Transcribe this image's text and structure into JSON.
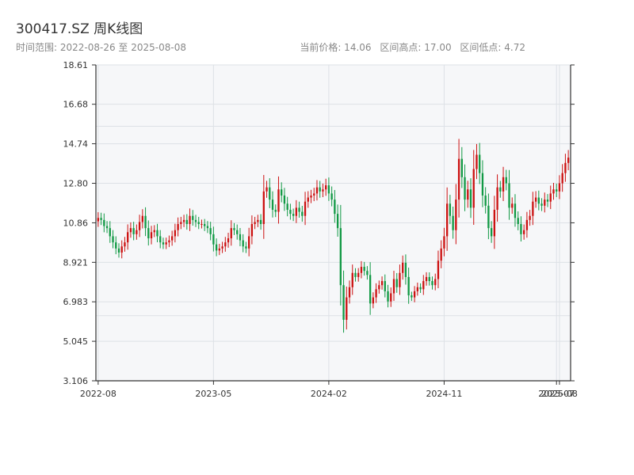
{
  "header": {
    "title": "300417.SZ 周K线图",
    "subtitle": "时间范围: 2022-08-26 至 2025-08-08",
    "stats": {
      "current": "当前价格: 14.06",
      "high": "区间高点: 17.00",
      "low": "区间低点: 4.72"
    }
  },
  "colors": {
    "up": "#cc1111",
    "down": "#119944",
    "plot_bg": "#f6f7f9",
    "grid": "#dde1e6",
    "axis": "#333333"
  },
  "chart_data": {
    "type": "candlestick",
    "title": "300417.SZ 周K线图",
    "ylim": [
      3.106,
      18.61
    ],
    "y_ticks": [
      3.106,
      5.045,
      6.983,
      8.921,
      10.86,
      12.8,
      14.74,
      16.68,
      18.61
    ],
    "y_tick_labels": [
      "3.106",
      "5.045",
      "6.983",
      "8.921",
      "10.86",
      "12.80",
      "14.74",
      "16.68",
      "18.61"
    ],
    "x_ticks": [
      {
        "label": "2022-08",
        "index": 0
      },
      {
        "label": "2023-05",
        "index": 39
      },
      {
        "label": "2024-02",
        "index": 78
      },
      {
        "label": "2024-11",
        "index": 117
      },
      {
        "label": "2025-07",
        "index": 155
      },
      {
        "label": "2025-08",
        "index": 156
      }
    ],
    "minor_grid_y": [
      6.3,
      15.6
    ],
    "closes": [
      11.1,
      11.0,
      10.7,
      10.6,
      10.2,
      9.9,
      9.6,
      9.4,
      9.7,
      9.9,
      10.4,
      10.6,
      10.3,
      10.5,
      10.9,
      11.2,
      10.6,
      10.1,
      10.4,
      10.5,
      10.2,
      9.9,
      9.8,
      9.9,
      10.0,
      10.2,
      10.5,
      10.8,
      10.9,
      11.0,
      10.8,
      11.2,
      11.0,
      10.9,
      10.8,
      10.8,
      10.7,
      10.6,
      10.3,
      9.8,
      9.5,
      9.6,
      9.7,
      9.9,
      10.1,
      10.6,
      10.5,
      10.3,
      10.0,
      9.7,
      9.6,
      10.2,
      10.8,
      10.9,
      11.0,
      10.8,
      12.4,
      12.6,
      12.0,
      11.5,
      11.4,
      12.5,
      12.2,
      11.8,
      11.5,
      11.3,
      11.2,
      11.6,
      11.4,
      11.2,
      11.9,
      12.1,
      12.2,
      12.3,
      12.6,
      12.4,
      12.5,
      12.7,
      12.3,
      12.0,
      11.3,
      10.6,
      7.8,
      6.1,
      7.2,
      7.7,
      8.4,
      8.2,
      8.4,
      8.7,
      8.5,
      8.3,
      6.9,
      7.2,
      7.6,
      7.8,
      8.0,
      7.5,
      7.0,
      7.4,
      8.1,
      7.7,
      8.4,
      8.9,
      8.2,
      7.3,
      7.2,
      7.5,
      7.7,
      7.6,
      8.0,
      8.2,
      8.0,
      7.8,
      8.1,
      9.0,
      9.6,
      10.2,
      11.8,
      11.2,
      10.5,
      12.0,
      14.0,
      13.1,
      12.0,
      12.5,
      11.6,
      13.5,
      14.2,
      13.3,
      12.2,
      11.7,
      10.6,
      10.2,
      11.5,
      12.6,
      12.4,
      13.1,
      12.8,
      11.6,
      11.8,
      11.1,
      10.8,
      10.3,
      10.5,
      11.0,
      11.2,
      11.9,
      12.1,
      11.8,
      11.7,
      12.0,
      11.9,
      12.3,
      12.5,
      12.4,
      12.8,
      13.3,
      13.8,
      14.06
    ]
  }
}
